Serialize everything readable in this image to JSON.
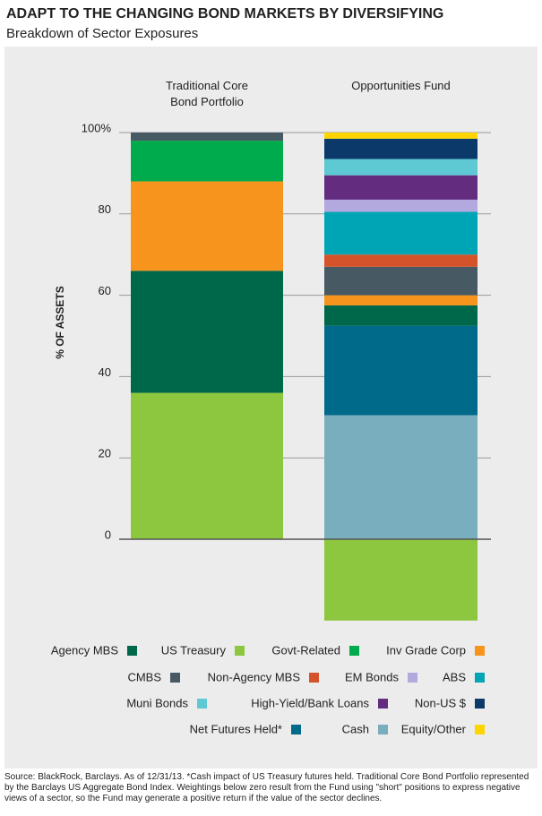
{
  "chart_data": {
    "type": "stacked-bar",
    "title": "ADAPT TO THE CHANGING BOND MARKETS BY DIVERSIFYING",
    "subtitle": "Breakdown of Sector Exposures",
    "y_label": "% OF ASSETS",
    "categories": [
      "Traditional Core\nBond Portfolio",
      "Opportunities Fund"
    ],
    "series": [
      {
        "name": "Agency MBS",
        "color": "#00684a",
        "values": [
          30,
          5
        ]
      },
      {
        "name": "US Treasury",
        "color": "#8dc63f",
        "values": [
          36,
          -20
        ]
      },
      {
        "name": "Govt-Related",
        "color": "#00ab4e",
        "values": [
          10,
          null
        ]
      },
      {
        "name": "Inv Grade Corp",
        "color": "#f7941d",
        "values": [
          22,
          2.5
        ]
      },
      {
        "name": "CMBS",
        "color": "#475a64",
        "values": [
          2,
          7
        ]
      },
      {
        "name": "Non-Agency MBS",
        "color": "#d4532a",
        "values": [
          null,
          3
        ]
      },
      {
        "name": "EM Bonds",
        "color": "#b3a9df",
        "values": [
          null,
          3
        ]
      },
      {
        "name": "ABS",
        "color": "#00a5b5",
        "values": [
          null,
          10.5
        ]
      },
      {
        "name": "Muni Bonds",
        "color": "#5ec9d3",
        "values": [
          null,
          4
        ]
      },
      {
        "name": "High-Yield/Bank Loans",
        "color": "#642c7f",
        "values": [
          null,
          6
        ]
      },
      {
        "name": "Non-US $",
        "color": "#0b3a6a",
        "values": [
          null,
          5
        ]
      },
      {
        "name": "Net Futures Held*",
        "color": "#006a8a",
        "values": [
          null,
          22
        ]
      },
      {
        "name": "Cash",
        "color": "#79aebe",
        "values": [
          null,
          30.5
        ]
      },
      {
        "name": "Equity/Other",
        "color": "#ffd500",
        "values": [
          null,
          1.5
        ]
      }
    ],
    "ylim": [
      -20,
      100
    ],
    "yticks": [
      0,
      20,
      40,
      60,
      80,
      {
        "value": 100,
        "label": "100%"
      }
    ],
    "grid": true,
    "source": "Source: BlackRock, Barclays. As of 12/31/13. *Cash impact of US Treasury futures held. Traditional Core Bond Portfolio represented by the Barclays US Aggregate Bond Index. Weightings below zero result from the Fund using \"short\" positions to express negative views of a sector, so the Fund may generate a positive return if the value of the sector declines."
  }
}
